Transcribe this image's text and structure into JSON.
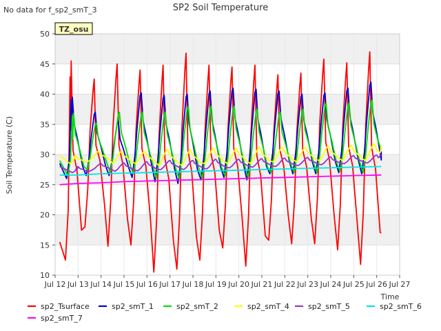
{
  "chart_data": {
    "type": "line",
    "title": "SP2 Soil Temperature",
    "no_data_note": "No data for f_sp2_smT_3",
    "badge": "TZ_osu",
    "xlabel": "Time",
    "ylabel": "Soil Temperature (C)",
    "xlim": [
      12,
      27
    ],
    "ylim": [
      10,
      50
    ],
    "x_ticks": [
      12,
      13,
      14,
      15,
      16,
      17,
      18,
      19,
      20,
      21,
      22,
      23,
      24,
      25,
      26,
      27
    ],
    "x_tick_labels": [
      "Jul 12",
      "Jul 13",
      "Jul 14",
      "Jul 15",
      "Jul 16",
      "Jul 17",
      "Jul 18",
      "Jul 19",
      "Jul 20",
      "Jul 21",
      "Jul 22",
      "Jul 23",
      "Jul 24",
      "Jul 25",
      "Jul 26",
      "Jul 27"
    ],
    "y_ticks": [
      10,
      15,
      20,
      25,
      30,
      35,
      40,
      45,
      50
    ],
    "grid": true,
    "legend_position": "bottom",
    "series": [
      {
        "name": "sp2_Tsurface",
        "color": "#ff0000",
        "daily_min": [
          12.5,
          18.0,
          14.8,
          15.0,
          10.5,
          11.0,
          12.5,
          14.5,
          11.5,
          15.8,
          15.2,
          15.2,
          14.2,
          11.8
        ],
        "daily_max": [
          45.5,
          42.5,
          45.0,
          44.0,
          44.8,
          46.8,
          44.8,
          44.5,
          44.8,
          43.2,
          43.5,
          45.8,
          45.2,
          47.0
        ],
        "start": 15.5,
        "end": 17.0
      },
      {
        "name": "sp2_smT_1",
        "color": "#0000cc",
        "daily_min": [
          26.0,
          26.5,
          26.5,
          26.2,
          25.5,
          25.2,
          25.8,
          26.2,
          25.8,
          26.8,
          26.8,
          26.8,
          27.0,
          26.8
        ],
        "daily_max": [
          39.5,
          37.0,
          35.5,
          40.2,
          39.8,
          40.0,
          40.5,
          41.0,
          40.8,
          40.5,
          40.0,
          40.2,
          41.0,
          42.0
        ],
        "start": 28.5,
        "end": 30.5
      },
      {
        "name": "sp2_smT_2",
        "color": "#00dd00",
        "daily_min": [
          26.5,
          27.5,
          27.0,
          26.8,
          26.0,
          26.0,
          26.0,
          26.5,
          26.2,
          27.0,
          27.0,
          27.0,
          27.2,
          27.0
        ],
        "daily_max": [
          36.8,
          35.2,
          37.0,
          37.0,
          37.0,
          38.0,
          38.0,
          38.0,
          37.5,
          37.0,
          37.5,
          38.5,
          38.5,
          39.0
        ],
        "start": 29.0,
        "end": 30.8
      },
      {
        "name": "sp2_smT_4",
        "color": "#ffff00",
        "daily_min": [
          28.5,
          29.0,
          28.5,
          28.5,
          28.2,
          28.2,
          28.5,
          28.5,
          28.5,
          28.8,
          28.8,
          29.0,
          29.0,
          29.0
        ],
        "daily_max": [
          29.8,
          30.5,
          30.5,
          30.5,
          30.8,
          30.8,
          31.0,
          31.0,
          31.2,
          31.2,
          31.2,
          31.4,
          31.5,
          31.8
        ],
        "start": 29.8,
        "end": 31.5
      },
      {
        "name": "sp2_smT_5",
        "color": "#9933cc",
        "daily_min": [
          27.0,
          27.4,
          27.2,
          27.3,
          27.5,
          27.5,
          27.6,
          27.8,
          27.9,
          28.0,
          28.2,
          28.3,
          28.5,
          28.6
        ],
        "daily_max": [
          28.0,
          28.5,
          28.6,
          28.8,
          29.0,
          29.0,
          29.2,
          29.2,
          29.3,
          29.4,
          29.5,
          29.6,
          29.8,
          29.9
        ],
        "start": 28.0,
        "end": 30.0
      },
      {
        "name": "sp2_smT_6",
        "color": "#00e5e5",
        "points": [
          [
            12.2,
            26.6
          ],
          [
            13.0,
            26.6
          ],
          [
            14.0,
            26.8
          ],
          [
            15.0,
            26.9
          ],
          [
            16.0,
            27.0
          ],
          [
            17.0,
            27.1
          ],
          [
            18.0,
            27.2
          ],
          [
            19.0,
            27.3
          ],
          [
            20.0,
            27.4
          ],
          [
            21.0,
            27.5
          ],
          [
            22.0,
            27.6
          ],
          [
            23.0,
            27.7
          ],
          [
            24.0,
            27.8
          ],
          [
            25.0,
            27.9
          ],
          [
            26.2,
            28.0
          ]
        ]
      },
      {
        "name": "sp2_smT_7",
        "color": "#ff00ff",
        "points": [
          [
            12.2,
            25.0
          ],
          [
            13.0,
            25.2
          ],
          [
            14.0,
            25.3
          ],
          [
            15.0,
            25.5
          ],
          [
            16.0,
            25.6
          ],
          [
            17.0,
            25.7
          ],
          [
            18.0,
            25.8
          ],
          [
            19.0,
            25.9
          ],
          [
            20.0,
            26.0
          ],
          [
            21.0,
            26.1
          ],
          [
            22.0,
            26.2
          ],
          [
            23.0,
            26.3
          ],
          [
            24.0,
            26.4
          ],
          [
            25.0,
            26.5
          ],
          [
            26.2,
            26.6
          ]
        ]
      }
    ]
  }
}
